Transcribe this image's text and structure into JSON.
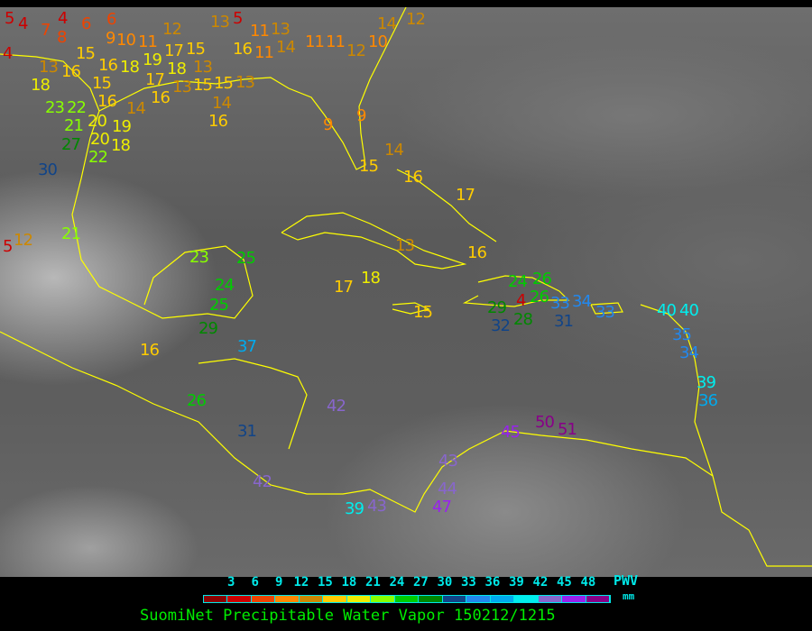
{
  "title": "SuomiNet Precipitable Water Vapor 150212/1215",
  "legend": {
    "unit_top": "PWV",
    "unit_bottom": "mm",
    "ticks": [
      "3",
      "6",
      "9",
      "12",
      "15",
      "18",
      "21",
      "24",
      "27",
      "30",
      "33",
      "36",
      "39",
      "42",
      "45",
      "48"
    ],
    "colors": [
      "#8b0000",
      "#cc0000",
      "#ee4400",
      "#ff8800",
      "#cc8800",
      "#ffcc00",
      "#eeee00",
      "#88ff00",
      "#00cc00",
      "#008800",
      "#114488",
      "#2288ee",
      "#00aaee",
      "#00eeee",
      "#8866cc",
      "#9922ee",
      "#880088"
    ]
  },
  "coastline_color": "#ffff00",
  "stations": [
    "5",
    "4",
    "4",
    "6",
    "6",
    "7",
    "8",
    "9",
    "4",
    "10",
    "11",
    "15",
    "13",
    "16",
    "16",
    "18",
    "19",
    "17",
    "18",
    "17",
    "13",
    "15",
    "13",
    "18",
    "15",
    "16",
    "16",
    "15",
    "15",
    "13",
    "14",
    "14",
    "16",
    "23",
    "22",
    "20",
    "21",
    "20",
    "27",
    "22",
    "19",
    "18",
    "13",
    "5",
    "12",
    "16",
    "11",
    "11",
    "13",
    "14",
    "11",
    "11",
    "12",
    "10",
    "14",
    "12",
    "9",
    "9",
    "14",
    "15",
    "16",
    "17",
    "30",
    "12",
    "5",
    "21",
    "23",
    "25",
    "24",
    "25",
    "29",
    "16",
    "37",
    "26",
    "31",
    "42",
    "42",
    "39",
    "43",
    "44",
    "47",
    "43",
    "45",
    "50",
    "51",
    "15",
    "13",
    "16",
    "17",
    "18",
    "24",
    "26",
    "26",
    "4",
    "29",
    "28",
    "32",
    "33",
    "31",
    "34",
    "33",
    "40",
    "40",
    "35",
    "34",
    "39",
    "36"
  ]
}
